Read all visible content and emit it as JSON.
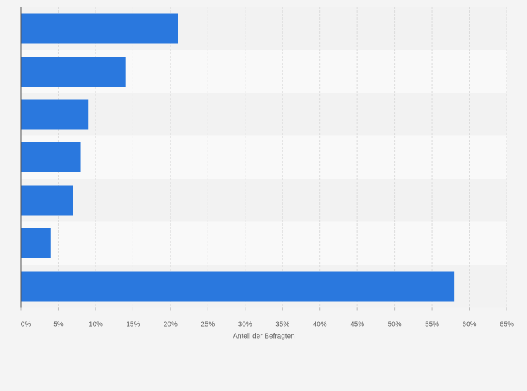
{
  "chart_data": {
    "type": "bar",
    "orientation": "horizontal",
    "categories": [
      "",
      "",
      "",
      "",
      "",
      "",
      ""
    ],
    "values": [
      21,
      14,
      9,
      8,
      7,
      4,
      58
    ],
    "xlim": [
      0,
      65
    ],
    "ticks": [
      0,
      5,
      10,
      15,
      20,
      25,
      30,
      35,
      40,
      45,
      50,
      55,
      60,
      65
    ],
    "tick_labels": [
      "0%",
      "5%",
      "10%",
      "15%",
      "20%",
      "25%",
      "30%",
      "35%",
      "40%",
      "45%",
      "50%",
      "55%",
      "60%",
      "65%"
    ],
    "xlabel": "Anteil der Befragten",
    "ylabel": "",
    "title": "",
    "grid": true,
    "legend": "none",
    "colors": {
      "bar": "#2a78de",
      "band_dark": "#f2f2f2",
      "band_light": "#f9f9f9",
      "gridline": "#dcdcdc",
      "axis": "#555555",
      "background": "#f4f4f4"
    }
  }
}
